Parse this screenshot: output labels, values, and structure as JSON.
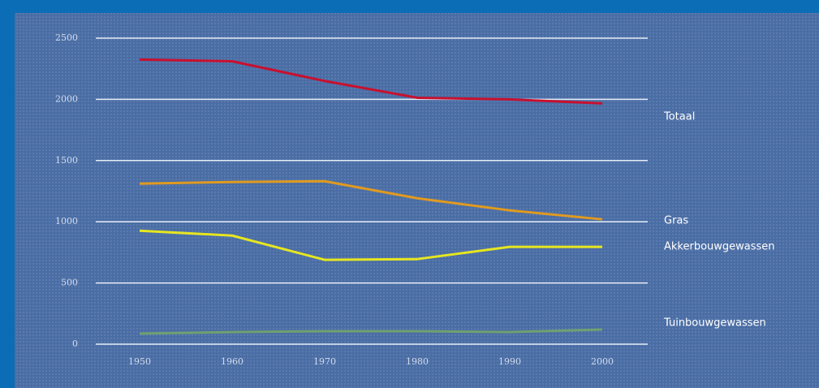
{
  "chart_data": {
    "type": "line",
    "x": [
      1950,
      1960,
      1970,
      1980,
      1990,
      2000
    ],
    "xlim": [
      1950,
      2000
    ],
    "xticks": [
      1950,
      1960,
      1970,
      1980,
      1990,
      2000
    ],
    "ylim": [
      0,
      2500
    ],
    "yticks": [
      0,
      500,
      1000,
      1500,
      2000,
      2500
    ],
    "grid": true,
    "series": [
      {
        "name": "Totaal",
        "color": "#c8102e",
        "values": [
          2325,
          2311,
          2150,
          2013,
          2000,
          1967
        ]
      },
      {
        "name": "Gras",
        "color": "#e09a20",
        "values": [
          1311,
          1325,
          1331,
          1192,
          1093,
          1020
        ]
      },
      {
        "name": "Akkerbouwgewassen",
        "color": "#e6e620",
        "values": [
          927,
          887,
          689,
          695,
          795,
          795
        ]
      },
      {
        "name": "Tuinbouwgewassen",
        "color": "#6fa070",
        "values": [
          86,
          99,
          106,
          106,
          99,
          119
        ]
      }
    ]
  }
}
